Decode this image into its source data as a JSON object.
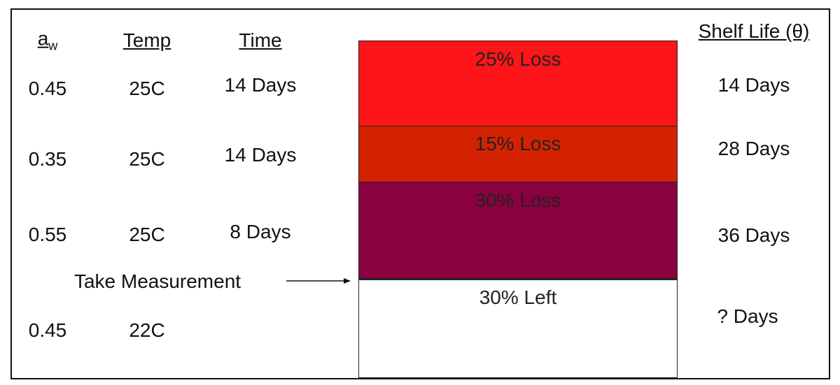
{
  "headers": {
    "aw": {
      "base": "a",
      "sub": "w"
    },
    "temp": "Temp",
    "time": "Time",
    "shelf_life": "Shelf Life (θ)"
  },
  "rows": [
    {
      "aw": "0.45",
      "temp": "25C",
      "time": "14 Days"
    },
    {
      "aw": "0.35",
      "temp": "25C",
      "time": "14 Days"
    },
    {
      "aw": "0.55",
      "temp": "25C",
      "time": "8 Days"
    },
    {
      "aw": "0.45",
      "temp": "22C"
    }
  ],
  "measurement_label": "Take Measurement",
  "segments": [
    "25% Loss",
    "15% Loss",
    "30% Loss",
    "30% Left"
  ],
  "shelf_life": [
    "14 Days",
    "28 Days",
    "36 Days",
    "? Days"
  ]
}
